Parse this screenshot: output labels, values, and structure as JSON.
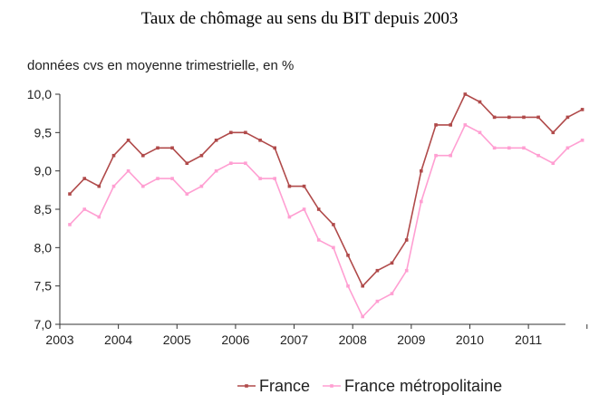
{
  "chart_data": {
    "type": "line",
    "title": "Taux de chômage au sens du BIT depuis 2003",
    "subtitle": "données cvs en moyenne trimestrielle, en %",
    "xlabel": "",
    "ylabel": "",
    "ylim": [
      7.0,
      10.0
    ],
    "y_ticks": [
      "10,0",
      "9,5",
      "9,0",
      "8,5",
      "8,0",
      "7,5",
      "7,0"
    ],
    "x_ticks": [
      "2003",
      "2004",
      "2005",
      "2006",
      "2007",
      "2008",
      "2009",
      "2010",
      "2011"
    ],
    "x": [
      "2003-T1",
      "2003-T2",
      "2003-T3",
      "2003-T4",
      "2004-T1",
      "2004-T2",
      "2004-T3",
      "2004-T4",
      "2005-T1",
      "2005-T2",
      "2005-T3",
      "2005-T4",
      "2006-T1",
      "2006-T2",
      "2006-T3",
      "2006-T4",
      "2007-T1",
      "2007-T2",
      "2007-T3",
      "2007-T4",
      "2008-T1",
      "2008-T2",
      "2008-T3",
      "2008-T4",
      "2009-T1",
      "2009-T2",
      "2009-T3",
      "2009-T4",
      "2010-T1",
      "2010-T2",
      "2010-T3",
      "2010-T4",
      "2011-T1",
      "2011-T2",
      "2011-T3",
      "2011-T4"
    ],
    "series": [
      {
        "name": "France",
        "color": "#b04a4a",
        "values": [
          8.7,
          8.9,
          8.8,
          9.2,
          9.4,
          9.2,
          9.3,
          9.3,
          9.1,
          9.2,
          9.4,
          9.5,
          9.5,
          9.4,
          9.3,
          8.8,
          8.8,
          8.5,
          8.3,
          7.9,
          7.5,
          7.7,
          7.8,
          8.1,
          9.0,
          9.6,
          9.6,
          10.0,
          9.9,
          9.7,
          9.7,
          9.7,
          9.7,
          9.5,
          9.7,
          9.8
        ]
      },
      {
        "name": "France métropolitaine",
        "color": "#ff9fd2",
        "values": [
          8.3,
          8.5,
          8.4,
          8.8,
          9.0,
          8.8,
          8.9,
          8.9,
          8.7,
          8.8,
          9.0,
          9.1,
          9.1,
          8.9,
          8.9,
          8.4,
          8.5,
          8.1,
          8.0,
          7.5,
          7.1,
          7.3,
          7.4,
          7.7,
          8.6,
          9.2,
          9.2,
          9.6,
          9.5,
          9.3,
          9.3,
          9.3,
          9.2,
          9.1,
          9.3,
          9.4
        ]
      }
    ],
    "grid": false,
    "legend_position": "bottom-right"
  }
}
